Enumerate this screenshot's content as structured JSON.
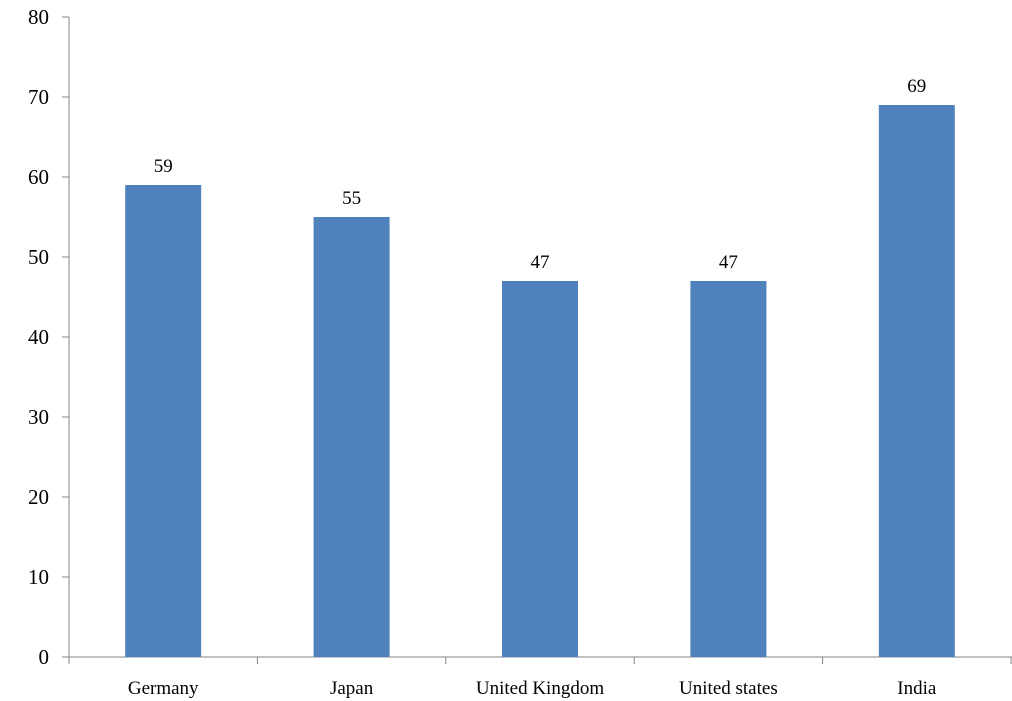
{
  "chart_data": {
    "type": "bar",
    "title": "",
    "xlabel": "",
    "ylabel": "",
    "categories": [
      "Germany",
      "Japan",
      "United Kingdom",
      "United states",
      "India"
    ],
    "values": [
      59,
      55,
      47,
      47,
      69
    ],
    "data_labels": [
      "59",
      "55",
      "47",
      "47",
      "69"
    ],
    "ylim": [
      0,
      80
    ],
    "yticks": [
      0,
      10,
      20,
      30,
      40,
      50,
      60,
      70,
      80
    ],
    "grid": false,
    "legend": "none",
    "bar_color": "#4F81BD",
    "axis_color": "#868686"
  }
}
